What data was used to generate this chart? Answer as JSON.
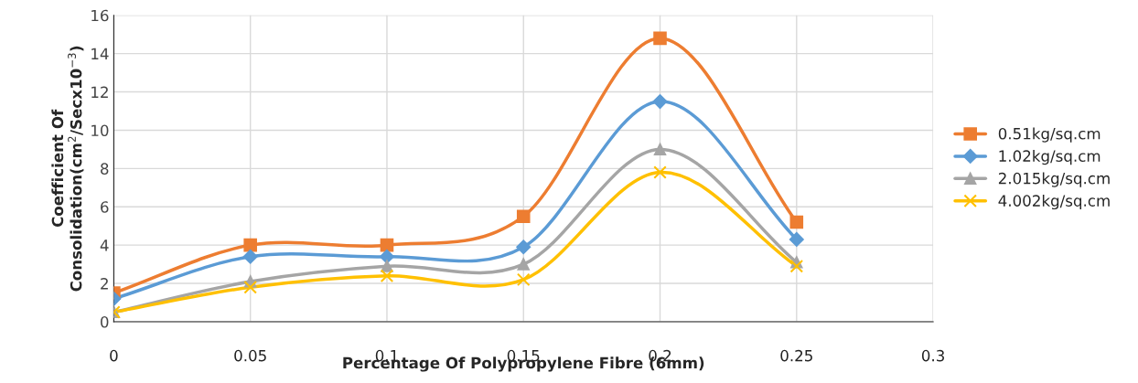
{
  "chart_data": {
    "type": "line",
    "xlabel": "Percentage Of Polypropylene Fibre (6mm)",
    "ylabel": "Coefficient Of\nConsolidation(cm$^{2}$/Secx10$^{−3}$)",
    "x": [
      0,
      0.05,
      0.1,
      0.15,
      0.2,
      0.25
    ],
    "series": [
      {
        "name": "0.51kg/sq.cm",
        "color": "#ed7d31",
        "marker": "square",
        "values": [
          1.5,
          4.0,
          4.0,
          5.5,
          14.8,
          5.2
        ]
      },
      {
        "name": "1.02kg/sq.cm",
        "color": "#5b9bd5",
        "marker": "diamond",
        "values": [
          1.2,
          3.4,
          3.4,
          3.9,
          11.5,
          4.3
        ]
      },
      {
        "name": "2.015kg/sq.cm",
        "color": "#a5a5a5",
        "marker": "triangle",
        "values": [
          0.5,
          2.1,
          2.9,
          3.0,
          9.0,
          3.1
        ]
      },
      {
        "name": "4.002kg/sq.cm",
        "color": "#ffc000",
        "marker": "cross",
        "values": [
          0.5,
          1.8,
          2.4,
          2.2,
          7.8,
          2.9
        ]
      }
    ],
    "xlim": [
      0,
      0.3
    ],
    "xticks": [
      0,
      0.05,
      0.1,
      0.15,
      0.2,
      0.25,
      0.3
    ],
    "ylim": [
      0,
      16
    ],
    "yticks": [
      0,
      2,
      4,
      6,
      8,
      10,
      12,
      14,
      16
    ],
    "grid": true,
    "legend": "right",
    "line_style": "solid"
  }
}
